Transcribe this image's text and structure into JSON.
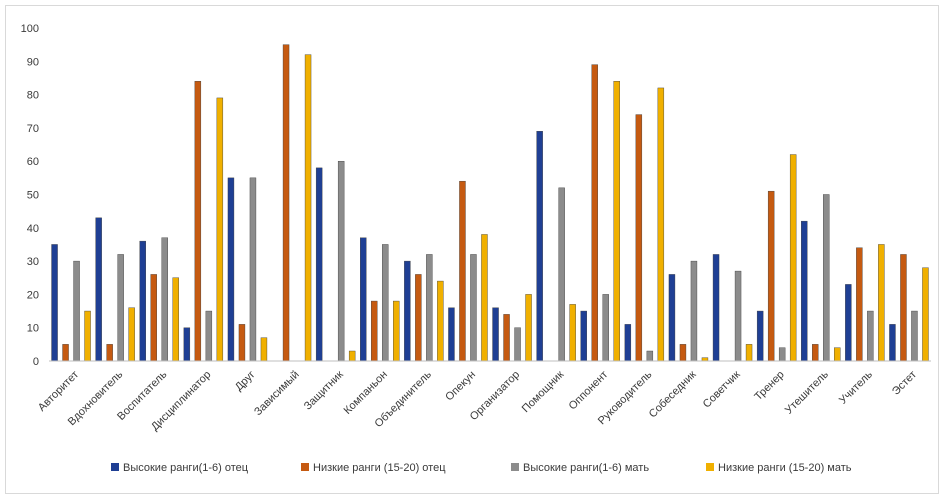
{
  "chart_data": {
    "type": "bar",
    "title": "",
    "xlabel": "",
    "ylabel": "",
    "ylim": [
      0,
      100
    ],
    "yticks": [
      0,
      10,
      20,
      30,
      40,
      50,
      60,
      70,
      80,
      90,
      100
    ],
    "grid": false,
    "legend_position": "bottom",
    "categories": [
      "Авторитет",
      "Вдохновитель",
      "Воспитатель",
      "Дисциплинатор",
      "Друг",
      "Зависимый",
      "Защитник",
      "Компаньон",
      "Объединитель",
      "Опекун",
      "Организатор",
      "Помощник",
      "Оппонент",
      "Руководитель",
      "Собеседник",
      "Советчик",
      "Тренер",
      "Утешитель",
      "Учитель",
      "Эстет"
    ],
    "series": [
      {
        "name": "Высокие ранги(1-6) отец",
        "color": "#1f3f94",
        "values": [
          35,
          43,
          36,
          10,
          55,
          0,
          58,
          37,
          30,
          16,
          16,
          69,
          15,
          11,
          26,
          32,
          15,
          42,
          23,
          11
        ]
      },
      {
        "name": "Низкие ранги (15-20) отец",
        "color": "#c55a11",
        "values": [
          5,
          5,
          26,
          84,
          11,
          95,
          0,
          18,
          26,
          54,
          14,
          0,
          89,
          74,
          5,
          0,
          51,
          5,
          34,
          32
        ]
      },
      {
        "name": "Высокие ранги(1-6) мать",
        "color": "#8c8c8c",
        "values": [
          30,
          32,
          37,
          15,
          55,
          0,
          60,
          35,
          32,
          32,
          10,
          52,
          20,
          3,
          30,
          27,
          4,
          50,
          15,
          15
        ]
      },
      {
        "name": "Низкие ранги (15-20) мать",
        "color": "#f0b000",
        "values": [
          15,
          16,
          25,
          79,
          7,
          92,
          3,
          18,
          24,
          38,
          20,
          17,
          84,
          82,
          1,
          5,
          62,
          4,
          35,
          28
        ]
      }
    ]
  }
}
